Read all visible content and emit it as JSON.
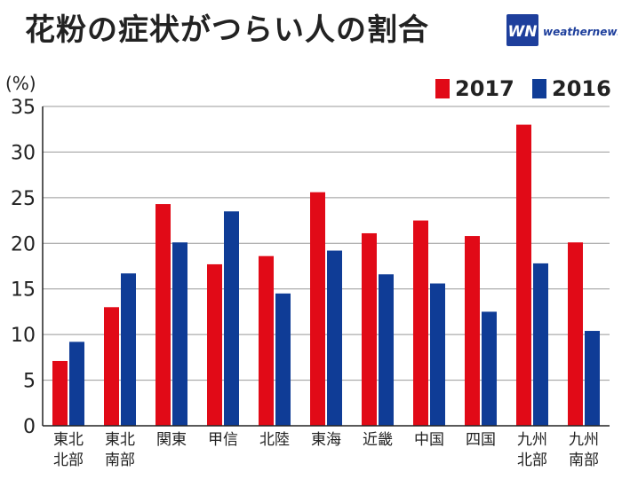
{
  "title": "花粉の症状がつらい人の割合",
  "brand": {
    "mark": "WN",
    "name": "weathernews",
    "color": "#1e3f9c"
  },
  "unit_label": "(%)",
  "colors": {
    "2017": "#e10a17",
    "2016": "#0f3c96"
  },
  "chart_data": {
    "type": "bar",
    "categories": [
      "東北\n北部",
      "東北\n南部",
      "関東",
      "甲信",
      "北陸",
      "東海",
      "近畿",
      "中国",
      "四国",
      "九州\n北部",
      "九州\n南部"
    ],
    "series": [
      {
        "name": "2017",
        "values": [
          7.1,
          13.0,
          24.3,
          17.7,
          18.6,
          25.6,
          21.1,
          22.5,
          20.8,
          33.0,
          20.1
        ]
      },
      {
        "name": "2016",
        "values": [
          9.2,
          16.7,
          20.1,
          23.5,
          14.5,
          19.2,
          16.6,
          15.6,
          12.5,
          17.8,
          10.4
        ]
      }
    ],
    "yticks": [
      0,
      5,
      10,
      15,
      20,
      25,
      30,
      35
    ],
    "ylim": [
      0,
      35
    ],
    "ylabel": "(%)",
    "grid": true,
    "legend": "top-right"
  }
}
